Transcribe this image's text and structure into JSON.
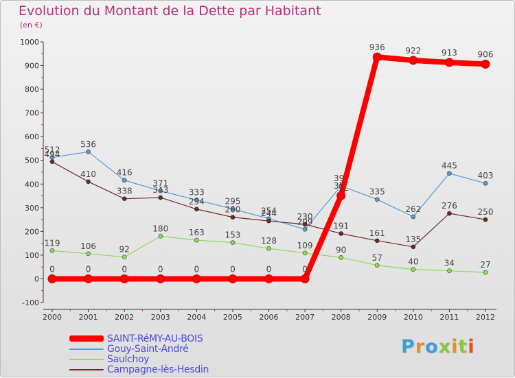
{
  "chart_data": {
    "type": "line",
    "title": "Evolution du Montant de la Dette par Habitant",
    "subtitle": "(en €)",
    "x": [
      "2000",
      "2001",
      "2002",
      "2003",
      "2004",
      "2005",
      "2006",
      "2007",
      "2008",
      "2009",
      "2010",
      "2011",
      "2012"
    ],
    "ylim": [
      -100,
      1000
    ],
    "yticks": [
      -100,
      0,
      100,
      200,
      300,
      400,
      500,
      600,
      700,
      800,
      900,
      1000
    ],
    "grid": false,
    "legend_position": "bottom-left",
    "series": [
      {
        "name": "Gouy-Saint-André",
        "color": "#5b9bd5",
        "values": [
          512,
          536,
          416,
          371,
          333,
          295,
          254,
          209,
          392,
          335,
          262,
          445,
          403
        ],
        "labels": [
          "512",
          "536",
          "416",
          "371",
          "333",
          "295",
          "254",
          "209",
          "39_",
          "335",
          "262",
          "445",
          "403"
        ]
      },
      {
        "name": "Saulchoy",
        "color": "#8fdc5a",
        "values": [
          119,
          106,
          92,
          180,
          163,
          153,
          128,
          109,
          90,
          57,
          40,
          34,
          27
        ],
        "labels": [
          "119",
          "106",
          "92",
          "180",
          "163",
          "153",
          "128",
          "109",
          "90",
          "57",
          "40",
          "34",
          "27"
        ]
      },
      {
        "name": "Campagne-lès-Hesdin",
        "color": "#6b2a2a",
        "values": [
          494,
          410,
          338,
          343,
          294,
          260,
          244,
          230,
          191,
          161,
          135,
          276,
          250
        ],
        "labels": [
          "494",
          "410",
          "338",
          "343",
          "294",
          "260",
          "244",
          "230",
          "191",
          "161",
          "135",
          "276",
          "250"
        ]
      },
      {
        "name": "SAINT-RéMY-AU-BOIS",
        "color": "#ff0000",
        "values": [
          0,
          0,
          0,
          0,
          0,
          0,
          0,
          0,
          351,
          936,
          922,
          913,
          906
        ],
        "labels": [
          "0",
          "0",
          "0",
          "0",
          "0",
          "0",
          "0",
          "0",
          "35_",
          "936",
          "922",
          "913",
          "906"
        ]
      }
    ]
  },
  "legend": {
    "items": [
      {
        "label": "SAINT-RéMY-AU-BOIS",
        "color": "#ff0000"
      },
      {
        "label": "Gouy-Saint-André",
        "color": "#5b9bd5"
      },
      {
        "label": "Saulchoy",
        "color": "#8fdc5a"
      },
      {
        "label": "Campagne-lès-Hesdin",
        "color": "#6b2a2a"
      }
    ]
  },
  "brand": {
    "letters": [
      {
        "ch": "P",
        "color": "#3aa0d8"
      },
      {
        "ch": "r",
        "color": "#f08a1c"
      },
      {
        "ch": "o",
        "color": "#3aa0d8"
      },
      {
        "ch": "x",
        "color": "#8cc63f"
      },
      {
        "ch": "i",
        "color": "#f08a1c"
      },
      {
        "ch": "t",
        "color": "#8cc63f"
      },
      {
        "ch": "i",
        "color": "#e8501c"
      }
    ]
  }
}
